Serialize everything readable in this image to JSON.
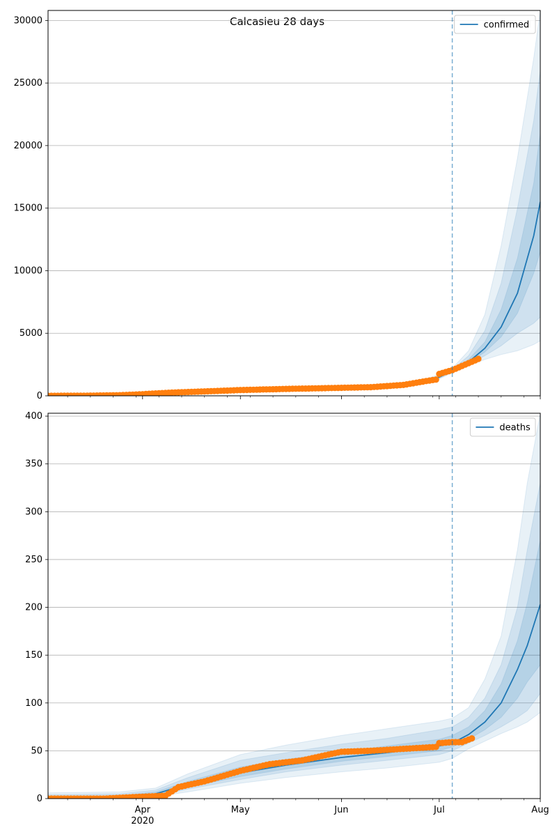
{
  "chart_data": [
    {
      "type": "line",
      "title": "Calcasieu 28 days",
      "xlabel": "",
      "ylabel": "",
      "x_range": [
        "2020-03-03",
        "2020-08-01"
      ],
      "ylim": [
        0,
        30800
      ],
      "y_ticks": [
        0,
        5000,
        10000,
        15000,
        20000,
        25000,
        30000
      ],
      "grid": "horizontal",
      "legend": "top-right",
      "forecast_start": "2020-07-05",
      "series": [
        {
          "name": "confirmed",
          "kind": "model",
          "color": "#1f77b4",
          "x": [
            "2020-03-03",
            "2020-03-20",
            "2020-04-01",
            "2020-04-15",
            "2020-05-01",
            "2020-05-15",
            "2020-06-01",
            "2020-06-15",
            "2020-06-25",
            "2020-07-01",
            "2020-07-05",
            "2020-07-10",
            "2020-07-15",
            "2020-07-20",
            "2020-07-25",
            "2020-07-30",
            "2020-08-01"
          ],
          "values": [
            0,
            40,
            120,
            280,
            420,
            520,
            620,
            760,
            1050,
            1500,
            2000,
            2700,
            3800,
            5500,
            8200,
            12800,
            15500
          ],
          "bands": [
            {
              "lower": [
                0,
                30,
                100,
                240,
                370,
                460,
                550,
                680,
                950,
                1350,
                1850,
                2400,
                2900,
                3300,
                3600,
                4100,
                4400
              ],
              "upper": [
                0,
                50,
                140,
                320,
                470,
                580,
                700,
                860,
                1200,
                1700,
                2200,
                3600,
                6500,
                12000,
                19000,
                27000,
                30800
              ]
            },
            {
              "lower": [
                0,
                34,
                108,
                255,
                390,
                485,
                580,
                715,
                995,
                1410,
                1900,
                2500,
                3200,
                4000,
                5000,
                5800,
                6300
              ],
              "upper": [
                0,
                46,
                132,
                305,
                450,
                555,
                665,
                815,
                1120,
                1600,
                2100,
                3200,
                5200,
                9000,
                15000,
                22000,
                26000
              ]
            },
            {
              "lower": [
                0,
                37,
                114,
                268,
                405,
                502,
                600,
                738,
                1022,
                1455,
                1950,
                2600,
                3500,
                4700,
                6600,
                9800,
                11500
              ],
              "upper": [
                0,
                43,
                126,
                292,
                435,
                538,
                640,
                782,
                1078,
                1545,
                2050,
                2900,
                4300,
                6900,
                11000,
                17000,
                21000
              ]
            }
          ]
        },
        {
          "name": "",
          "kind": "observed",
          "color": "#ff7f0e",
          "x": [
            "2020-03-03",
            "2020-03-15",
            "2020-03-25",
            "2020-04-01",
            "2020-04-10",
            "2020-04-20",
            "2020-05-01",
            "2020-05-15",
            "2020-06-01",
            "2020-06-10",
            "2020-06-20",
            "2020-06-27",
            "2020-06-30",
            "2020-07-01",
            "2020-07-05",
            "2020-07-09",
            "2020-07-13"
          ],
          "values": [
            0,
            10,
            50,
            130,
            260,
            350,
            460,
            550,
            640,
            690,
            870,
            1180,
            1300,
            1750,
            2050,
            2500,
            2950
          ]
        }
      ]
    },
    {
      "type": "line",
      "title": "",
      "xlabel": "",
      "ylabel": "",
      "x_range": [
        "2020-03-03",
        "2020-08-01"
      ],
      "ylim": [
        0,
        403
      ],
      "y_ticks": [
        0,
        50,
        100,
        150,
        200,
        250,
        300,
        350,
        400
      ],
      "x_ticks": [
        "Apr\n2020",
        "May",
        "Jun",
        "Jul",
        "Aug"
      ],
      "x_tick_dates": [
        "2020-04-01",
        "2020-05-01",
        "2020-06-01",
        "2020-07-01",
        "2020-08-01"
      ],
      "grid": "horizontal",
      "legend": "top-right",
      "forecast_start": "2020-07-05",
      "series": [
        {
          "name": "deaths",
          "kind": "model",
          "color": "#1f77b4",
          "x": [
            "2020-03-03",
            "2020-03-25",
            "2020-04-05",
            "2020-04-15",
            "2020-05-01",
            "2020-05-15",
            "2020-06-01",
            "2020-06-15",
            "2020-07-01",
            "2020-07-05",
            "2020-07-10",
            "2020-07-15",
            "2020-07-20",
            "2020-07-25",
            "2020-07-28",
            "2020-08-01"
          ],
          "values": [
            0,
            1,
            5,
            15,
            27,
            35,
            43,
            48,
            55,
            58,
            67,
            80,
            100,
            135,
            160,
            203
          ],
          "bands": [
            {
              "lower": [
                0,
                0,
                2,
                7,
                16,
                22,
                28,
                32,
                38,
                42,
                52,
                60,
                68,
                75,
                80,
                90
              ],
              "upper": [
                6,
                7,
                11,
                26,
                46,
                56,
                66,
                73,
                81,
                84,
                95,
                125,
                170,
                260,
                330,
                403
              ]
            },
            {
              "lower": [
                0,
                0,
                3,
                10,
                20,
                28,
                35,
                40,
                46,
                50,
                58,
                66,
                75,
                85,
                92,
                110
              ],
              "upper": [
                4,
                5,
                9,
                22,
                40,
                48,
                57,
                63,
                72,
                75,
                85,
                105,
                140,
                200,
                260,
                330
              ]
            },
            {
              "lower": [
                0,
                1,
                4,
                12,
                23,
                31,
                39,
                44,
                50,
                54,
                62,
                72,
                85,
                105,
                122,
                140
              ],
              "upper": [
                2,
                3,
                7,
                18,
                33,
                41,
                49,
                55,
                62,
                66,
                75,
                92,
                120,
                165,
                205,
                270
              ]
            }
          ]
        },
        {
          "name": "",
          "kind": "observed",
          "color": "#ff7f0e",
          "x": [
            "2020-03-03",
            "2020-03-20",
            "2020-04-01",
            "2020-04-08",
            "2020-04-12",
            "2020-04-20",
            "2020-05-01",
            "2020-05-10",
            "2020-05-20",
            "2020-06-01",
            "2020-06-10",
            "2020-06-20",
            "2020-06-30",
            "2020-07-01",
            "2020-07-05",
            "2020-07-08",
            "2020-07-11"
          ],
          "values": [
            0,
            0,
            2,
            3,
            12,
            18,
            29,
            36,
            40,
            49,
            50,
            52,
            54,
            58,
            59,
            59,
            63
          ]
        }
      ]
    }
  ]
}
